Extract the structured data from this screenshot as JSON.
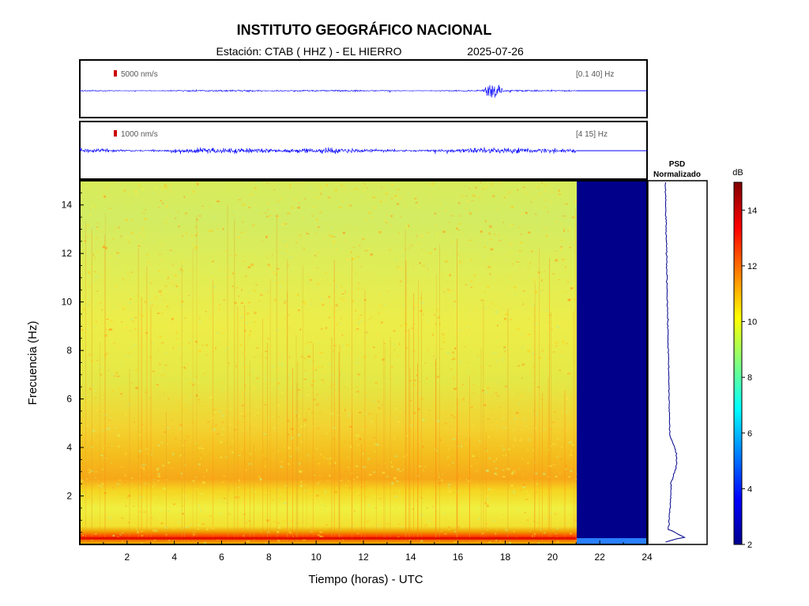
{
  "header": {
    "title": "INSTITUTO GEOGRÁFICO NACIONAL",
    "station_label": "Estación:  CTAB ( HHZ ) - EL HIERRO",
    "date": "2025-07-26"
  },
  "colors": {
    "trace": "#0000ff",
    "scale_marker": "#cc0000",
    "no_data": "#00008b",
    "psd_line": "#00008b"
  },
  "chart_data": [
    {
      "type": "line",
      "name": "trace-broadband",
      "scale_label": "5000 nm/s",
      "filter_label": "[0.1 40] Hz",
      "xlim": [
        0,
        24
      ],
      "data_end_hour": 21,
      "events_hours": [
        17.5
      ]
    },
    {
      "type": "line",
      "name": "trace-filtered",
      "scale_label": "1000 nm/s",
      "filter_label": "[4 15] Hz",
      "xlim": [
        0,
        24
      ],
      "data_end_hour": 21
    },
    {
      "type": "heatmap",
      "xlabel": "Tiempo (horas) - UTC",
      "ylabel": "Frecuencia  (Hz)",
      "xlim": [
        0,
        24
      ],
      "ylim": [
        0,
        15
      ],
      "xticks": [
        2,
        4,
        6,
        8,
        10,
        12,
        14,
        16,
        18,
        20,
        22,
        24
      ],
      "yticks": [
        2,
        4,
        6,
        8,
        10,
        12,
        14
      ],
      "data_end_hour": 21
    },
    {
      "type": "line",
      "name": "psd-normalizado",
      "title": "PSD\nNormalizado",
      "title_line1": "PSD",
      "title_line2": "Normalizado",
      "ylim": [
        0,
        15
      ]
    },
    {
      "type": "colorbar",
      "label": "dB",
      "range": [
        2,
        15
      ],
      "ticks": [
        2,
        4,
        6,
        8,
        10,
        12,
        14
      ]
    }
  ]
}
